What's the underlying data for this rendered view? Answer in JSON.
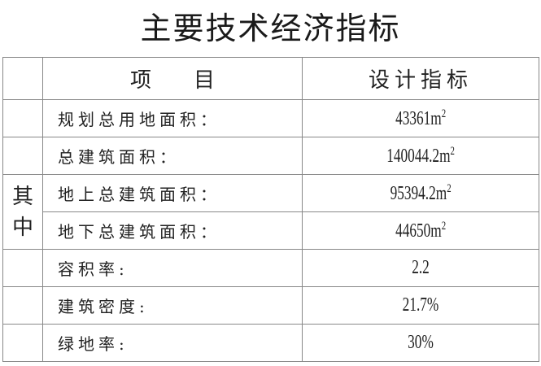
{
  "title": "主要技术经济指标",
  "table": {
    "headers": [
      "项　　目",
      "设计指标"
    ],
    "group_label": "其中",
    "rows": [
      {
        "item": "规划总用地面积：",
        "value": "43361m",
        "unit_sup": "2"
      },
      {
        "item": "总建筑面积：",
        "value": "140044.2m",
        "unit_sup": "2"
      },
      {
        "item": "地上总建筑面积：",
        "value": "95394.2m",
        "unit_sup": "2"
      },
      {
        "item": "地下总建筑面积：",
        "value": "44650m",
        "unit_sup": "2"
      },
      {
        "item": "容积率:",
        "value": "2.2"
      },
      {
        "item": "建筑密度:",
        "value": "21.7%"
      },
      {
        "item": "绿地率:",
        "value": "30%"
      }
    ]
  }
}
